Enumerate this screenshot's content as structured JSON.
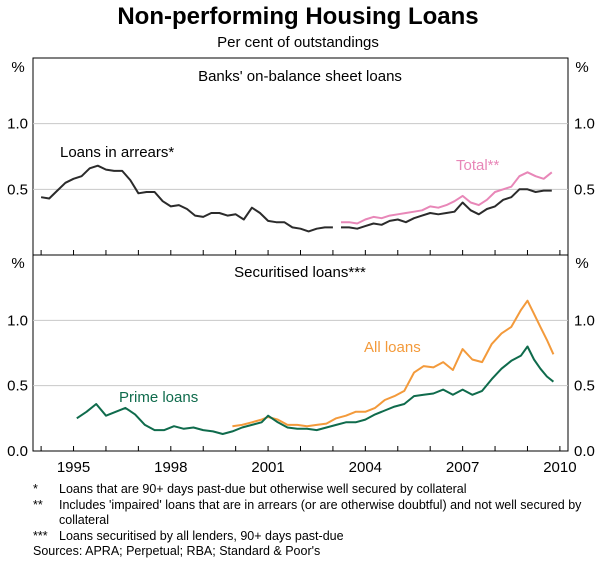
{
  "title": "Non-performing Housing Loans",
  "subtitle": "Per cent of outstandings",
  "x_ticks": [
    "1995",
    "1998",
    "2001",
    "2004",
    "2007",
    "2010"
  ],
  "footnotes": [
    {
      "mark": "*",
      "text": "Loans that are 90+ days past-due but otherwise well secured by collateral"
    },
    {
      "mark": "**",
      "text": "Includes 'impaired' loans that are in arrears (or are otherwise doubtful) and not well secured by collateral"
    },
    {
      "mark": "***",
      "text": "Loans securitised by all lenders, 90+ days past-due"
    }
  ],
  "sources": "Sources: APRA; Perpetual; RBA; Standard & Poor's",
  "colors": {
    "arrears": "#2b2b2b",
    "total": "#e887b8",
    "all_loans": "#f39a3b",
    "prime_loans": "#0f6b4c"
  },
  "chart_data": [
    {
      "type": "line",
      "panel": "top",
      "title": "Banks' on-balance sheet loans",
      "ylabel": "%",
      "ylim": [
        0.0,
        1.5
      ],
      "yticks": [
        "0.5",
        "1.0"
      ],
      "series": [
        {
          "name": "Loans in arrears*",
          "color": "#2b2b2b",
          "x": [
            1994.0,
            1994.25,
            1994.5,
            1994.75,
            1995.0,
            1995.25,
            1995.5,
            1995.75,
            1996.0,
            1996.25,
            1996.5,
            1996.75,
            1997.0,
            1997.25,
            1997.5,
            1997.75,
            1998.0,
            1998.25,
            1998.5,
            1998.75,
            1999.0,
            1999.25,
            1999.5,
            1999.75,
            2000.0,
            2000.25,
            2000.5,
            2000.75,
            2001.0,
            2001.25,
            2001.5,
            2001.75,
            2002.0,
            2002.25,
            2002.5,
            2002.75,
            2003.0
          ],
          "y": [
            0.44,
            0.43,
            0.49,
            0.55,
            0.58,
            0.6,
            0.66,
            0.68,
            0.65,
            0.64,
            0.64,
            0.57,
            0.47,
            0.48,
            0.48,
            0.41,
            0.37,
            0.38,
            0.35,
            0.3,
            0.29,
            0.32,
            0.32,
            0.3,
            0.31,
            0.27,
            0.36,
            0.32,
            0.26,
            0.25,
            0.25,
            0.21,
            0.2,
            0.18,
            0.2,
            0.21,
            0.21
          ]
        },
        {
          "name": "",
          "color": "#2b2b2b",
          "x": [
            2003.25,
            2003.5,
            2003.75,
            2004.0,
            2004.25,
            2004.5,
            2004.75,
            2005.0,
            2005.25,
            2005.5,
            2005.75,
            2006.0,
            2006.25,
            2006.5,
            2006.75,
            2007.0,
            2007.25,
            2007.5,
            2007.75,
            2008.0,
            2008.25,
            2008.5,
            2008.75,
            2009.0,
            2009.25,
            2009.5,
            2009.75
          ],
          "y": [
            0.21,
            0.21,
            0.2,
            0.22,
            0.24,
            0.23,
            0.26,
            0.27,
            0.25,
            0.28,
            0.3,
            0.32,
            0.31,
            0.32,
            0.33,
            0.4,
            0.34,
            0.31,
            0.35,
            0.37,
            0.42,
            0.44,
            0.5,
            0.5,
            0.48,
            0.49,
            0.49
          ]
        },
        {
          "name": "Total**",
          "color": "#e887b8",
          "x": [
            2003.25,
            2003.5,
            2003.75,
            2004.0,
            2004.25,
            2004.5,
            2004.75,
            2005.0,
            2005.25,
            2005.5,
            2005.75,
            2006.0,
            2006.25,
            2006.5,
            2006.75,
            2007.0,
            2007.25,
            2007.5,
            2007.75,
            2008.0,
            2008.25,
            2008.5,
            2008.75,
            2009.0,
            2009.25,
            2009.5,
            2009.75
          ],
          "y": [
            0.25,
            0.25,
            0.24,
            0.27,
            0.29,
            0.28,
            0.3,
            0.31,
            0.32,
            0.33,
            0.34,
            0.37,
            0.36,
            0.38,
            0.41,
            0.45,
            0.4,
            0.38,
            0.42,
            0.48,
            0.5,
            0.52,
            0.6,
            0.63,
            0.6,
            0.58,
            0.63
          ]
        }
      ]
    },
    {
      "type": "line",
      "panel": "bottom",
      "title": "Securitised loans***",
      "ylabel": "%",
      "ylim": [
        0.0,
        1.5
      ],
      "yticks": [
        "0.0",
        "0.5",
        "1.0"
      ],
      "series": [
        {
          "name": "All loans",
          "color": "#f39a3b",
          "x": [
            1999.9,
            2000.2,
            2000.5,
            2000.8,
            2001.0,
            2001.3,
            2001.6,
            2001.9,
            2002.2,
            2002.5,
            2002.8,
            2003.1,
            2003.4,
            2003.7,
            2004.0,
            2004.3,
            2004.6,
            2004.9,
            2005.2,
            2005.5,
            2005.8,
            2006.1,
            2006.4,
            2006.7,
            2007.0,
            2007.3,
            2007.6,
            2007.9,
            2008.2,
            2008.5,
            2008.8,
            2009.0,
            2009.2,
            2009.4,
            2009.6,
            2009.8
          ],
          "y": [
            0.19,
            0.2,
            0.22,
            0.24,
            0.26,
            0.24,
            0.2,
            0.2,
            0.19,
            0.2,
            0.21,
            0.25,
            0.27,
            0.3,
            0.3,
            0.33,
            0.39,
            0.42,
            0.46,
            0.6,
            0.65,
            0.64,
            0.68,
            0.62,
            0.78,
            0.7,
            0.68,
            0.82,
            0.9,
            0.95,
            1.08,
            1.15,
            1.05,
            0.95,
            0.85,
            0.74
          ]
        },
        {
          "name": "Prime loans",
          "color": "#0f6b4c",
          "x": [
            1995.1,
            1995.4,
            1995.7,
            1996.0,
            1996.3,
            1996.6,
            1996.9,
            1997.2,
            1997.5,
            1997.8,
            1998.1,
            1998.4,
            1998.7,
            1999.0,
            1999.3,
            1999.6,
            1999.9,
            2000.2,
            2000.5,
            2000.8,
            2001.0,
            2001.3,
            2001.6,
            2001.9,
            2002.2,
            2002.5,
            2002.8,
            2003.1,
            2003.4,
            2003.7,
            2004.0,
            2004.3,
            2004.6,
            2004.9,
            2005.2,
            2005.5,
            2005.8,
            2006.1,
            2006.4,
            2006.7,
            2007.0,
            2007.3,
            2007.6,
            2007.9,
            2008.2,
            2008.5,
            2008.8,
            2009.0,
            2009.2,
            2009.4,
            2009.6,
            2009.8
          ],
          "y": [
            0.25,
            0.3,
            0.36,
            0.27,
            0.3,
            0.33,
            0.28,
            0.2,
            0.16,
            0.16,
            0.19,
            0.17,
            0.18,
            0.16,
            0.15,
            0.13,
            0.15,
            0.18,
            0.2,
            0.22,
            0.27,
            0.22,
            0.18,
            0.17,
            0.17,
            0.16,
            0.18,
            0.2,
            0.22,
            0.22,
            0.24,
            0.28,
            0.31,
            0.34,
            0.36,
            0.42,
            0.43,
            0.44,
            0.47,
            0.43,
            0.47,
            0.43,
            0.46,
            0.55,
            0.63,
            0.69,
            0.73,
            0.8,
            0.7,
            0.63,
            0.57,
            0.53
          ]
        }
      ]
    }
  ],
  "annotations": {
    "arrears_label": "Loans in arrears*",
    "total_label": "Total**",
    "all_loans_label": "All loans",
    "prime_loans_label": "Prime loans",
    "percent_label": "%"
  }
}
